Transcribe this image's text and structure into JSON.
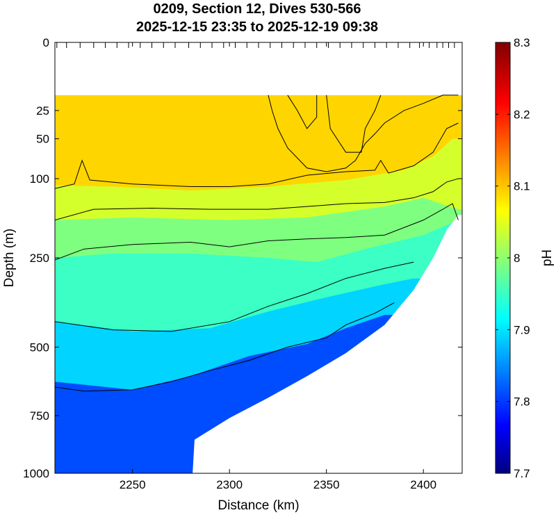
{
  "chart_data": {
    "type": "heatmap",
    "title": [
      "0209, Section 12, Dives 530-566",
      "2025-12-15 23:35 to 2025-12-19 09:38"
    ],
    "xlabel": "Distance (km)",
    "ylabel": "Depth (m)",
    "xlim": [
      2210,
      2420
    ],
    "x_ticks": [
      2250,
      2300,
      2350,
      2400
    ],
    "ylim": [
      0,
      1000
    ],
    "y_scale": "sqrt",
    "y_ticks": [
      0,
      25,
      50,
      100,
      250,
      500,
      750,
      1000
    ],
    "colorbar": {
      "label": "pH",
      "range": [
        7.7,
        8.3
      ],
      "ticks": [
        "7.7",
        "7.8",
        "7.9",
        "8",
        "8.1",
        "8.2",
        "8.3"
      ],
      "colormap": "jet"
    },
    "data_top_depth": 15,
    "bottom_profile": {
      "x": [
        2210,
        2281,
        2282,
        2300,
        2320,
        2340,
        2360,
        2380,
        2395,
        2405,
        2412,
        2418
      ],
      "depth": [
        1000,
        1000,
        850,
        760,
        680,
        600,
        520,
        430,
        330,
        250,
        190,
        160
      ]
    },
    "zones": [
      {
        "name": "surface",
        "value": 8.1,
        "top_depth": 15,
        "bottom": [
          [
            2210,
            110
          ],
          [
            2240,
            112
          ],
          [
            2280,
            118
          ],
          [
            2320,
            112
          ],
          [
            2360,
            102
          ],
          [
            2390,
            88
          ],
          [
            2405,
            70
          ],
          [
            2415,
            50
          ]
        ]
      },
      {
        "name": "upper-mid",
        "value": 8.05,
        "bottom": [
          [
            2210,
            170
          ],
          [
            2250,
            165
          ],
          [
            2300,
            170
          ],
          [
            2340,
            165
          ],
          [
            2380,
            145
          ],
          [
            2400,
            130
          ],
          [
            2418,
            150
          ]
        ]
      },
      {
        "name": "mid",
        "value": 8.0,
        "bottom": [
          [
            2210,
            250
          ],
          [
            2240,
            240
          ],
          [
            2280,
            240
          ],
          [
            2320,
            250
          ],
          [
            2345,
            260
          ],
          [
            2370,
            230
          ],
          [
            2400,
            200
          ],
          [
            2418,
            170
          ]
        ]
      },
      {
        "name": "lower-mid",
        "value": 7.96,
        "bottom": [
          [
            2210,
            420
          ],
          [
            2250,
            450
          ],
          [
            2290,
            440
          ],
          [
            2320,
            390
          ],
          [
            2350,
            350
          ],
          [
            2380,
            315
          ],
          [
            2395,
            300
          ]
        ]
      },
      {
        "name": "deep",
        "value": 7.9,
        "bottom": [
          [
            2210,
            620
          ],
          [
            2250,
            650
          ],
          [
            2280,
            600
          ],
          [
            2310,
            530
          ],
          [
            2340,
            490
          ],
          [
            2360,
            440
          ],
          [
            2380,
            400
          ]
        ]
      },
      {
        "name": "minimum",
        "value": 7.82,
        "bottom": [
          [
            2210,
            1000
          ],
          [
            2281,
            1000
          ]
        ]
      }
    ],
    "contours": [
      {
        "x": [
          2210,
          2220,
          2224,
          2228,
          2250,
          2280,
          2300,
          2320,
          2340,
          2360,
          2375,
          2378,
          2382,
          2395,
          2405,
          2412,
          2418
        ],
        "depth": [
          115,
          108,
          75,
          102,
          108,
          112,
          112,
          108,
          95,
          90,
          88,
          75,
          92,
          82,
          65,
          40,
          35
        ]
      },
      {
        "x": [
          2210,
          2230,
          2260,
          2290,
          2320,
          2340,
          2360,
          2380,
          2395,
          2405,
          2412,
          2418
        ],
        "depth": [
          170,
          150,
          148,
          150,
          150,
          145,
          140,
          138,
          130,
          120,
          105,
          100
        ]
      },
      {
        "x": [
          2210,
          2225,
          2250,
          2280,
          2300,
          2320,
          2340,
          2360,
          2380,
          2400,
          2410,
          2415,
          2418
        ],
        "depth": [
          255,
          230,
          220,
          215,
          225,
          212,
          208,
          205,
          200,
          170,
          150,
          140,
          170
        ]
      },
      {
        "x": [
          2210,
          2240,
          2270,
          2300,
          2320,
          2340,
          2360,
          2380,
          2395
        ],
        "depth": [
          420,
          445,
          450,
          420,
          375,
          340,
          300,
          275,
          260
        ]
      },
      {
        "x": [
          2210,
          2225,
          2250,
          2270,
          2290,
          2310,
          2330,
          2350,
          2360,
          2375,
          2385
        ],
        "depth": [
          640,
          655,
          650,
          620,
          580,
          545,
          500,
          470,
          430,
          395,
          365
        ]
      },
      {
        "x": [
          2330,
          2335,
          2340,
          2345,
          2345
        ],
        "depth": [
          15,
          25,
          40,
          30,
          15
        ]
      },
      {
        "x": [
          2320,
          2322,
          2325,
          2330,
          2340,
          2350,
          2360,
          2365,
          2370,
          2375,
          2380,
          2390,
          2400,
          2410,
          2418
        ],
        "depth": [
          15,
          25,
          40,
          60,
          85,
          90,
          85,
          75,
          55,
          45,
          35,
          25,
          20,
          15,
          15
        ]
      },
      {
        "x": [
          2350,
          2352,
          2360,
          2368,
          2370,
          2375,
          2378
        ],
        "depth": [
          15,
          40,
          65,
          65,
          40,
          25,
          15
        ]
      }
    ],
    "dive_ticks_x": [
      2211,
      2216,
      2223,
      2230,
      2236,
      2242,
      2248,
      2254,
      2260,
      2266,
      2272,
      2279,
      2285,
      2291,
      2297,
      2303,
      2309,
      2315,
      2321,
      2327,
      2333,
      2339,
      2345,
      2351,
      2357,
      2363,
      2369,
      2375,
      2381,
      2387,
      2393,
      2398,
      2403,
      2407,
      2410,
      2413,
      2416
    ]
  }
}
